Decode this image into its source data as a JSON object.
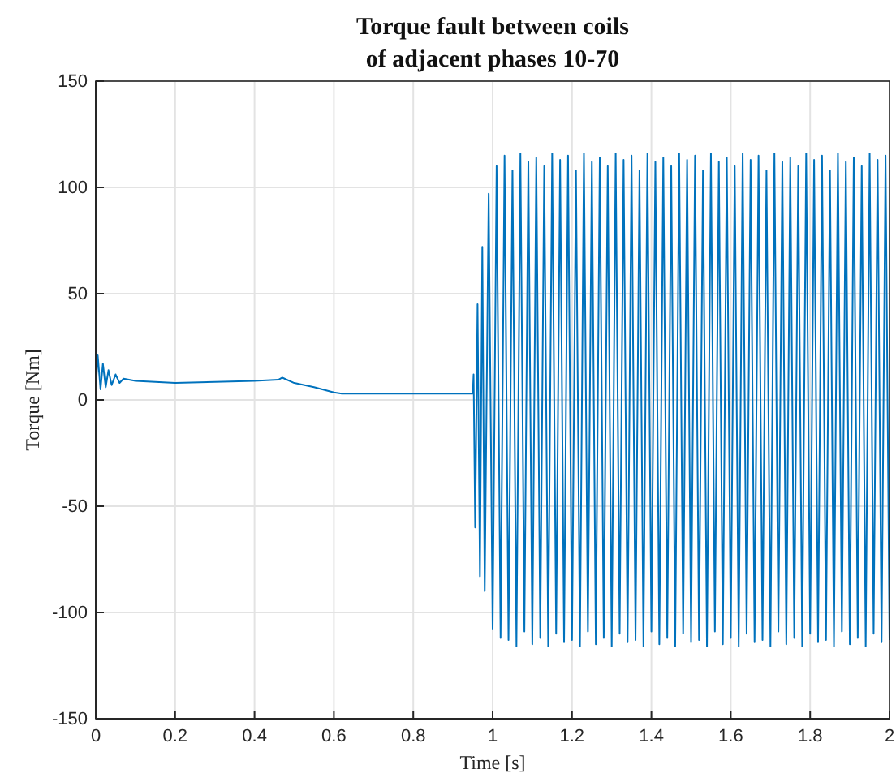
{
  "chart_data": {
    "type": "line",
    "title": "Torque fault between coils\nof adjacent phases 10-70",
    "xlabel": "Time [s]",
    "ylabel": "Torque [Nm]",
    "xlim": [
      0,
      2
    ],
    "xticks": [
      0,
      0.2,
      0.4,
      0.6,
      0.8,
      1,
      1.2,
      1.4,
      1.6,
      1.8,
      2
    ],
    "ylim": [
      -150,
      150
    ],
    "yticks": [
      -150,
      -100,
      -50,
      0,
      50,
      100,
      150
    ],
    "grid": true,
    "marker": "none",
    "line_style": "solid",
    "series": [
      {
        "color": "#0072bd",
        "x": [
          0,
          0.005,
          0.012,
          0.018,
          0.025,
          0.032,
          0.04,
          0.05,
          0.06,
          0.07,
          0.1,
          0.2,
          0.3,
          0.4,
          0.46,
          0.47,
          0.5,
          0.55,
          0.6,
          0.62,
          0.95,
          0.952,
          0.956,
          0.962,
          0.968,
          0.974,
          0.98,
          0.99,
          1.0,
          1.01,
          1.02,
          1.03,
          1.04,
          1.05,
          1.06,
          1.07,
          1.08,
          1.09,
          1.1,
          1.11,
          1.12,
          1.13,
          1.14,
          1.15,
          1.16,
          1.17,
          1.18,
          1.19,
          1.2,
          1.21,
          1.22,
          1.23,
          1.24,
          1.25,
          1.26,
          1.27,
          1.28,
          1.29,
          1.3,
          1.31,
          1.32,
          1.33,
          1.34,
          1.35,
          1.36,
          1.37,
          1.38,
          1.39,
          1.4,
          1.41,
          1.42,
          1.43,
          1.44,
          1.45,
          1.46,
          1.47,
          1.48,
          1.49,
          1.5,
          1.51,
          1.52,
          1.53,
          1.54,
          1.55,
          1.56,
          1.57,
          1.58,
          1.59,
          1.6,
          1.61,
          1.62,
          1.63,
          1.64,
          1.65,
          1.66,
          1.67,
          1.68,
          1.69,
          1.7,
          1.71,
          1.72,
          1.73,
          1.74,
          1.75,
          1.76,
          1.77,
          1.78,
          1.79,
          1.8,
          1.81,
          1.82,
          1.83,
          1.84,
          1.85,
          1.86,
          1.87,
          1.88,
          1.89,
          1.9,
          1.91,
          1.92,
          1.93,
          1.94,
          1.95,
          1.96,
          1.97,
          1.98,
          1.99,
          2.0
        ],
        "values": [
          5,
          21,
          5,
          17,
          6,
          14,
          7,
          12,
          8,
          10,
          9,
          8,
          8.5,
          9,
          9.5,
          10.5,
          8,
          6,
          3.5,
          3,
          3,
          12,
          -60,
          45,
          -83,
          72,
          -90,
          97,
          -108,
          110,
          -112,
          115,
          -113,
          108,
          -116,
          116,
          -109,
          112,
          -115,
          114,
          -112,
          110,
          -116,
          116,
          -110,
          113,
          -114,
          115,
          -113,
          108,
          -116,
          116,
          -109,
          112,
          -115,
          114,
          -112,
          110,
          -116,
          116,
          -110,
          113,
          -114,
          115,
          -113,
          108,
          -116,
          116,
          -109,
          112,
          -115,
          114,
          -112,
          110,
          -116,
          116,
          -110,
          113,
          -114,
          115,
          -113,
          108,
          -116,
          116,
          -109,
          112,
          -115,
          114,
          -112,
          110,
          -116,
          116,
          -110,
          113,
          -114,
          115,
          -113,
          108,
          -116,
          116,
          -109,
          112,
          -115,
          114,
          -112,
          110,
          -116,
          116,
          -110,
          113,
          -114,
          115,
          -113,
          108,
          -116,
          116,
          -109,
          112,
          -115,
          114,
          -112,
          110,
          -116,
          116,
          -110,
          113,
          -114,
          115,
          -113
        ]
      }
    ]
  }
}
